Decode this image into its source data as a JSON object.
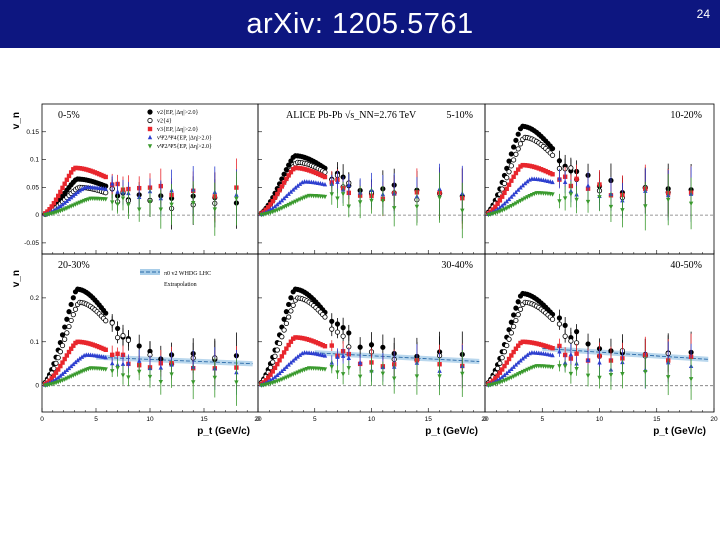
{
  "slide": {
    "title": "arXiv: 1205.5761",
    "page_number": "24"
  },
  "chart_data": {
    "type": "scatter",
    "x_label": "p_t (GeV/c)",
    "y_label": "v_n",
    "xlim": [
      0,
      20
    ],
    "x_ticks": [
      0,
      5,
      10,
      15,
      20
    ],
    "grid": false,
    "experiment": "ALICE Pb-Pb √s_NN=2.76 TeV",
    "legend": {
      "entries": [
        {
          "name": "v2{EP, |Δη|>2.0}",
          "marker": "filled-circle",
          "color": "#000000"
        },
        {
          "name": "v2{4}",
          "marker": "open-circle",
          "color": "#000000"
        },
        {
          "name": "v3{EP, |Δη|>2.0}",
          "marker": "filled-square",
          "color": "#e8262d"
        },
        {
          "name": "vΨ2/Ψ4{EP, |Δη|>2.0}",
          "marker": "filled-triangle-up",
          "color": "#2d3fcf"
        },
        {
          "name": "vΨ2/Ψ5{EP, |Δη|>2.0}",
          "marker": "filled-triangle-down",
          "color": "#3a9a2e"
        }
      ],
      "model": {
        "name": "π0 v2 WHDG LHC",
        "note": "Extrapolation",
        "color": "#4a90c8"
      }
    },
    "rows": [
      {
        "ylim": [
          -0.07,
          0.2
        ],
        "y_ticks": [
          -0.05,
          0,
          0.05,
          0.1,
          0.15
        ],
        "tick_labels": [
          "-0.05",
          "0",
          "0.05",
          "0.1",
          "0.15"
        ]
      },
      {
        "ylim": [
          -0.06,
          0.3
        ],
        "y_ticks": [
          0,
          0.1,
          0.2
        ],
        "tick_labels": [
          "0",
          "0.1",
          "0.2"
        ]
      }
    ],
    "panels": [
      {
        "centrality": "0-5%",
        "row": 0,
        "col": 0,
        "v2": {
          "peak": 0.065,
          "peak_pt": 3.2,
          "tail": 0.03
        },
        "v24": {
          "peak": 0.05,
          "tail": 0.02
        },
        "v3": {
          "peak": 0.085,
          "peak_pt": 3.0,
          "tail": 0.045
        },
        "v4": {
          "peak": 0.05,
          "peak_pt": 4.0,
          "tail": 0.035
        },
        "v5": {
          "peak": 0.03,
          "peak_pt": 4.5,
          "tail": 0.02
        },
        "wh": false
      },
      {
        "centrality": "5-10%",
        "row": 0,
        "col": 1,
        "v2": {
          "peak": 0.107,
          "peak_pt": 3.2,
          "tail": 0.045
        },
        "v24": {
          "peak": 0.095,
          "tail": 0.04
        },
        "v3": {
          "peak": 0.085,
          "peak_pt": 3.2,
          "tail": 0.04
        },
        "v4": {
          "peak": 0.06,
          "peak_pt": 4.0,
          "tail": 0.035
        },
        "v5": {
          "peak": 0.035,
          "peak_pt": 4.5,
          "tail": 0.02
        },
        "wh": false
      },
      {
        "centrality": "10-20%",
        "row": 0,
        "col": 2,
        "v2": {
          "peak": 0.16,
          "peak_pt": 3.2,
          "tail": 0.05
        },
        "v24": {
          "peak": 0.14,
          "tail": 0.04
        },
        "v3": {
          "peak": 0.09,
          "peak_pt": 3.2,
          "tail": 0.045
        },
        "v4": {
          "peak": 0.065,
          "peak_pt": 4.0,
          "tail": 0.035
        },
        "v5": {
          "peak": 0.04,
          "peak_pt": 4.5,
          "tail": 0.02
        },
        "wh": false
      },
      {
        "centrality": "20-30%",
        "row": 1,
        "col": 0,
        "v2": {
          "peak": 0.22,
          "peak_pt": 3.2,
          "tail": 0.07
        },
        "v24": {
          "peak": 0.19,
          "tail": 0.06
        },
        "v3": {
          "peak": 0.1,
          "peak_pt": 3.2,
          "tail": 0.05
        },
        "v4": {
          "peak": 0.07,
          "peak_pt": 4.0,
          "tail": 0.04
        },
        "v5": {
          "peak": 0.04,
          "peak_pt": 4.5,
          "tail": 0.02
        },
        "wh": true,
        "wh_start": 0.065,
        "wh_end": 0.05
      },
      {
        "centrality": "30-40%",
        "row": 1,
        "col": 1,
        "v2": {
          "peak": 0.22,
          "peak_pt": 3.2,
          "tail": 0.075
        },
        "v24": {
          "peak": 0.2,
          "tail": 0.065
        },
        "v3": {
          "peak": 0.11,
          "peak_pt": 3.2,
          "tail": 0.055
        },
        "v4": {
          "peak": 0.075,
          "peak_pt": 4.0,
          "tail": 0.04
        },
        "v5": {
          "peak": 0.04,
          "peak_pt": 4.5,
          "tail": 0.02
        },
        "wh": true,
        "wh_start": 0.075,
        "wh_end": 0.055
      },
      {
        "centrality": "40-50%",
        "row": 1,
        "col": 2,
        "v2": {
          "peak": 0.21,
          "peak_pt": 3.2,
          "tail": 0.08
        },
        "v24": {
          "peak": 0.19,
          "tail": 0.07
        },
        "v3": {
          "peak": 0.1,
          "peak_pt": 3.2,
          "tail": 0.06
        },
        "v4": {
          "peak": 0.075,
          "peak_pt": 4.0,
          "tail": 0.045
        },
        "v5": {
          "peak": 0.045,
          "peak_pt": 4.5,
          "tail": 0.025
        },
        "wh": true,
        "wh_start": 0.085,
        "wh_end": 0.06
      }
    ]
  }
}
